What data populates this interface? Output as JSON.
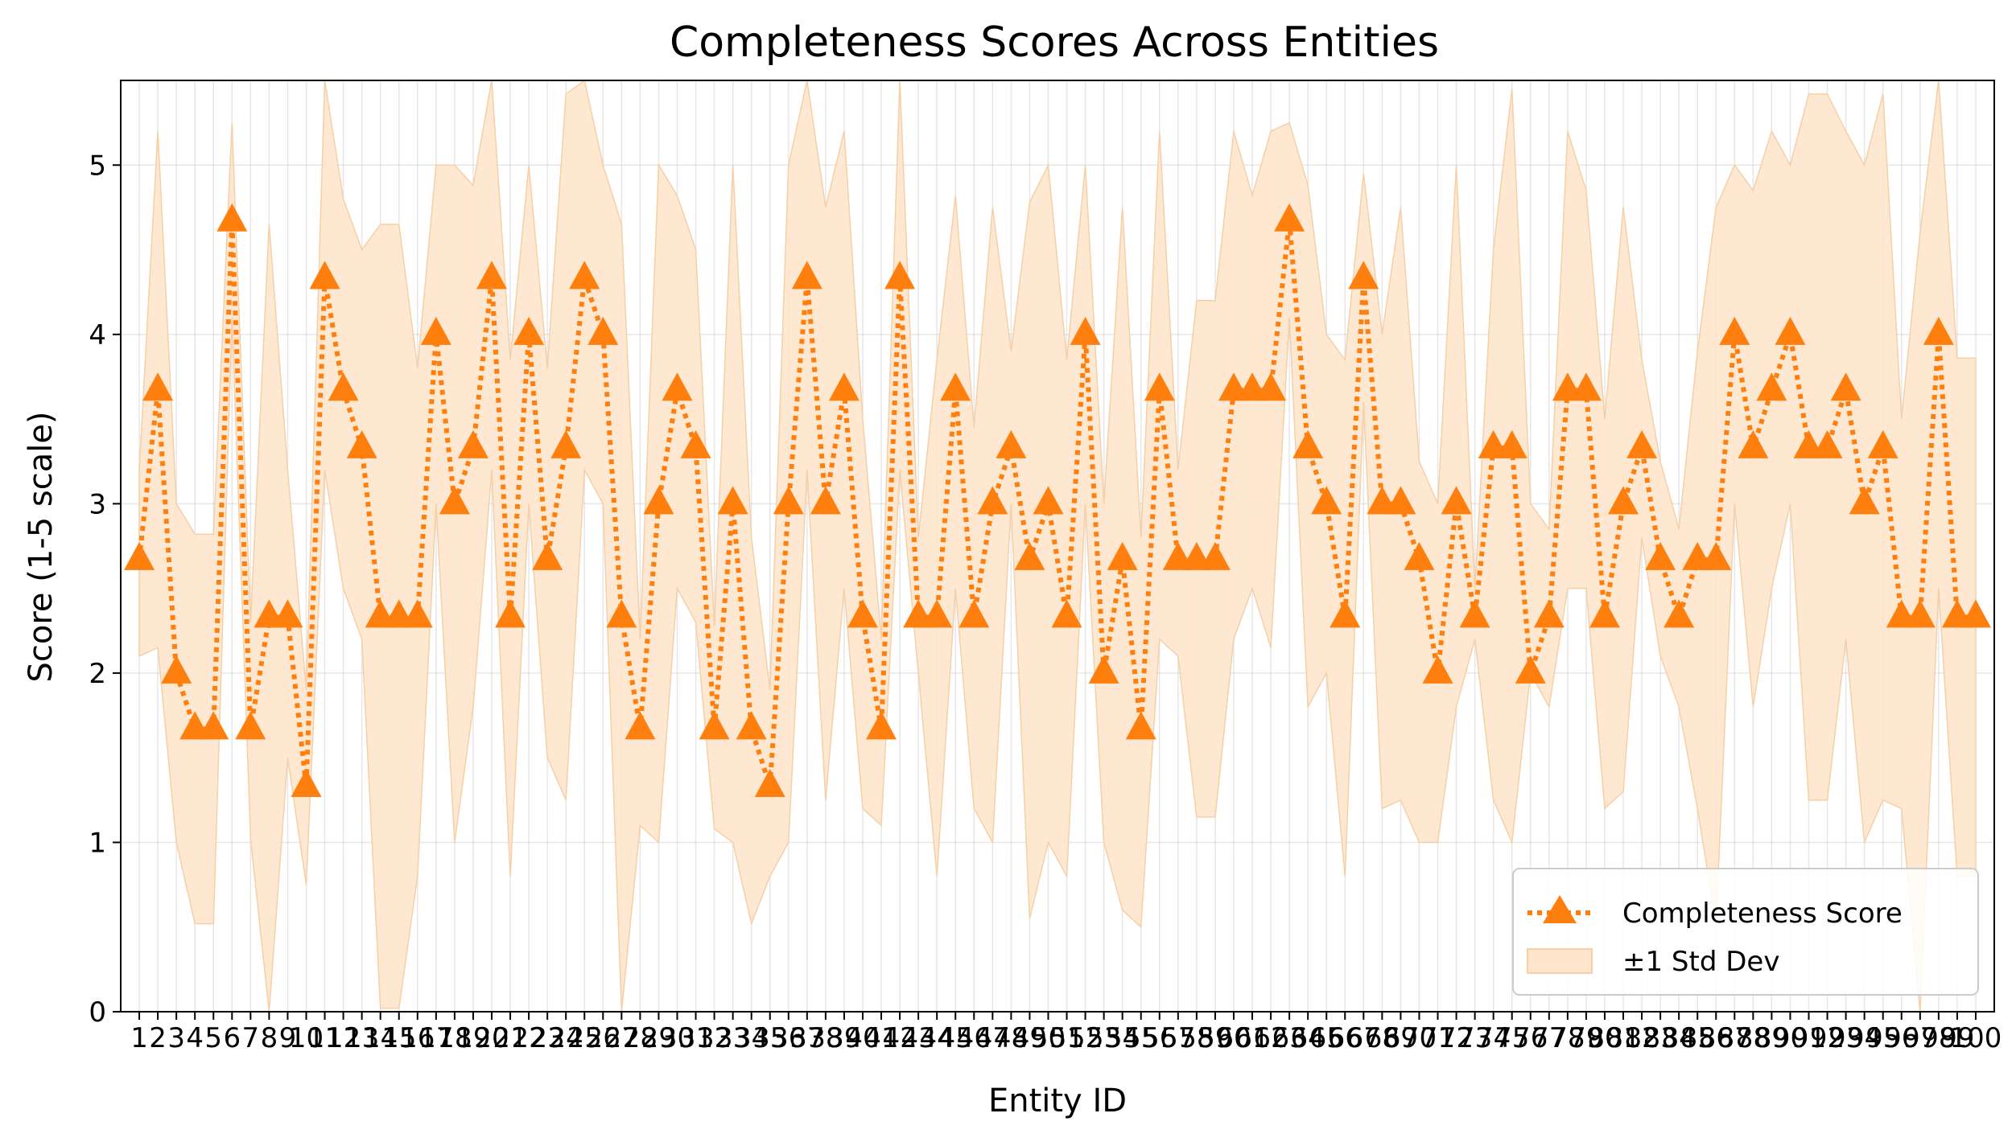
{
  "chart_data": {
    "type": "line",
    "title": "Completeness Scores Across Entities",
    "xlabel": "Entity ID",
    "ylabel": "Score (1-5 scale)",
    "ylim": [
      0,
      5.5
    ],
    "yticks": [
      0,
      1,
      2,
      3,
      4,
      5
    ],
    "grid": true,
    "legend_position": "bottom-right",
    "x": [
      1,
      2,
      3,
      4,
      5,
      6,
      7,
      8,
      9,
      10,
      11,
      12,
      13,
      14,
      15,
      16,
      17,
      18,
      19,
      20,
      21,
      22,
      23,
      24,
      25,
      26,
      27,
      28,
      29,
      30,
      31,
      32,
      33,
      34,
      35,
      36,
      37,
      38,
      39,
      40,
      41,
      42,
      43,
      44,
      45,
      46,
      47,
      48,
      49,
      50,
      51,
      52,
      53,
      54,
      55,
      56,
      57,
      58,
      59,
      60,
      61,
      62,
      63,
      64,
      65,
      66,
      67,
      68,
      69,
      70,
      71,
      72,
      73,
      74,
      75,
      76,
      77,
      78,
      79,
      80,
      81,
      82,
      83,
      84,
      85,
      86,
      87,
      88,
      89,
      90,
      91,
      92,
      93,
      94,
      95,
      96,
      97,
      98,
      99,
      100
    ],
    "series": [
      {
        "name": "Completeness Score",
        "color": "#ff7f0e",
        "values": [
          2.67,
          3.67,
          2.0,
          1.67,
          1.67,
          4.67,
          1.67,
          2.33,
          2.33,
          1.33,
          4.33,
          3.67,
          3.33,
          2.33,
          2.33,
          2.33,
          4.0,
          3.0,
          3.33,
          4.33,
          2.33,
          4.0,
          2.67,
          3.33,
          4.33,
          4.0,
          2.33,
          1.67,
          3.0,
          3.67,
          3.33,
          1.67,
          3.0,
          1.67,
          1.33,
          3.0,
          4.33,
          3.0,
          3.67,
          2.33,
          1.67,
          4.33,
          2.33,
          2.33,
          3.67,
          2.33,
          3.0,
          3.33,
          2.67,
          3.0,
          2.33,
          4.0,
          2.0,
          2.67,
          1.67,
          3.67,
          2.67,
          2.67,
          2.67,
          3.67,
          3.67,
          3.67,
          4.67,
          3.33,
          3.0,
          2.33,
          4.33,
          3.0,
          3.0,
          2.67,
          2.0,
          3.0,
          2.33,
          3.33,
          3.33,
          2.0,
          2.33,
          3.67,
          3.67,
          2.33,
          3.0,
          3.33,
          2.67,
          2.33,
          2.67,
          2.67,
          4.0,
          3.33,
          3.67,
          4.0,
          3.33,
          3.33,
          3.67,
          3.0,
          3.33,
          2.33,
          2.33,
          4.0,
          2.33,
          2.33
        ]
      },
      {
        "name": "±1 Std Dev",
        "color": "#ffe5cc",
        "lower": [
          2.1,
          2.15,
          1.0,
          0.52,
          0.52,
          4.1,
          1.02,
          0.0,
          1.5,
          0.75,
          3.2,
          2.5,
          2.2,
          0.02,
          0.02,
          0.8,
          3.0,
          1.0,
          1.8,
          3.2,
          0.8,
          3.0,
          1.5,
          1.25,
          3.2,
          3.0,
          0.0,
          1.1,
          1.0,
          2.5,
          2.3,
          1.08,
          1.0,
          0.52,
          0.8,
          1.0,
          3.2,
          1.25,
          2.5,
          1.2,
          1.1,
          3.2,
          2.0,
          0.8,
          2.5,
          1.2,
          1.0,
          3.0,
          0.55,
          1.0,
          0.8,
          3.0,
          1.0,
          0.6,
          0.5,
          2.2,
          2.1,
          1.15,
          1.15,
          2.2,
          2.5,
          2.15,
          4.1,
          1.8,
          2.0,
          0.8,
          3.6,
          1.2,
          1.25,
          1.0,
          1.0,
          1.8,
          2.2,
          1.25,
          1.0,
          2.0,
          1.8,
          2.5,
          2.5,
          1.2,
          1.3,
          2.8,
          2.1,
          1.8,
          1.2,
          0.52,
          3.0,
          1.8,
          2.5,
          3.0,
          1.25,
          1.25,
          2.2,
          1.0,
          1.25,
          1.2,
          0.0,
          2.5,
          0.8,
          0.8
        ],
        "upper": [
          3.2,
          5.2,
          3.0,
          2.82,
          2.82,
          5.25,
          2.3,
          4.65,
          3.2,
          1.9,
          5.5,
          4.8,
          4.5,
          4.65,
          4.65,
          3.8,
          5.0,
          5.0,
          4.88,
          5.5,
          3.85,
          5.0,
          3.8,
          5.42,
          5.5,
          5.0,
          4.65,
          2.2,
          5.0,
          4.82,
          4.5,
          2.28,
          5.0,
          2.8,
          1.9,
          5.0,
          5.5,
          4.75,
          5.2,
          3.5,
          2.2,
          5.5,
          2.8,
          3.85,
          4.82,
          3.45,
          4.75,
          3.9,
          4.78,
          5.0,
          3.85,
          5.0,
          3.0,
          4.75,
          2.8,
          5.2,
          3.2,
          4.2,
          4.2,
          5.2,
          4.82,
          5.2,
          5.25,
          4.88,
          4.0,
          3.85,
          4.95,
          4.0,
          4.75,
          3.25,
          3.0,
          5.0,
          2.5,
          4.5,
          5.45,
          3.0,
          2.85,
          5.2,
          4.85,
          3.5,
          4.75,
          3.85,
          3.25,
          2.85,
          3.9,
          4.75,
          5.0,
          4.85,
          5.2,
          5.0,
          5.42,
          5.42,
          5.2,
          5.0,
          5.42,
          3.5,
          4.6,
          5.5,
          3.86,
          3.86
        ]
      }
    ]
  }
}
